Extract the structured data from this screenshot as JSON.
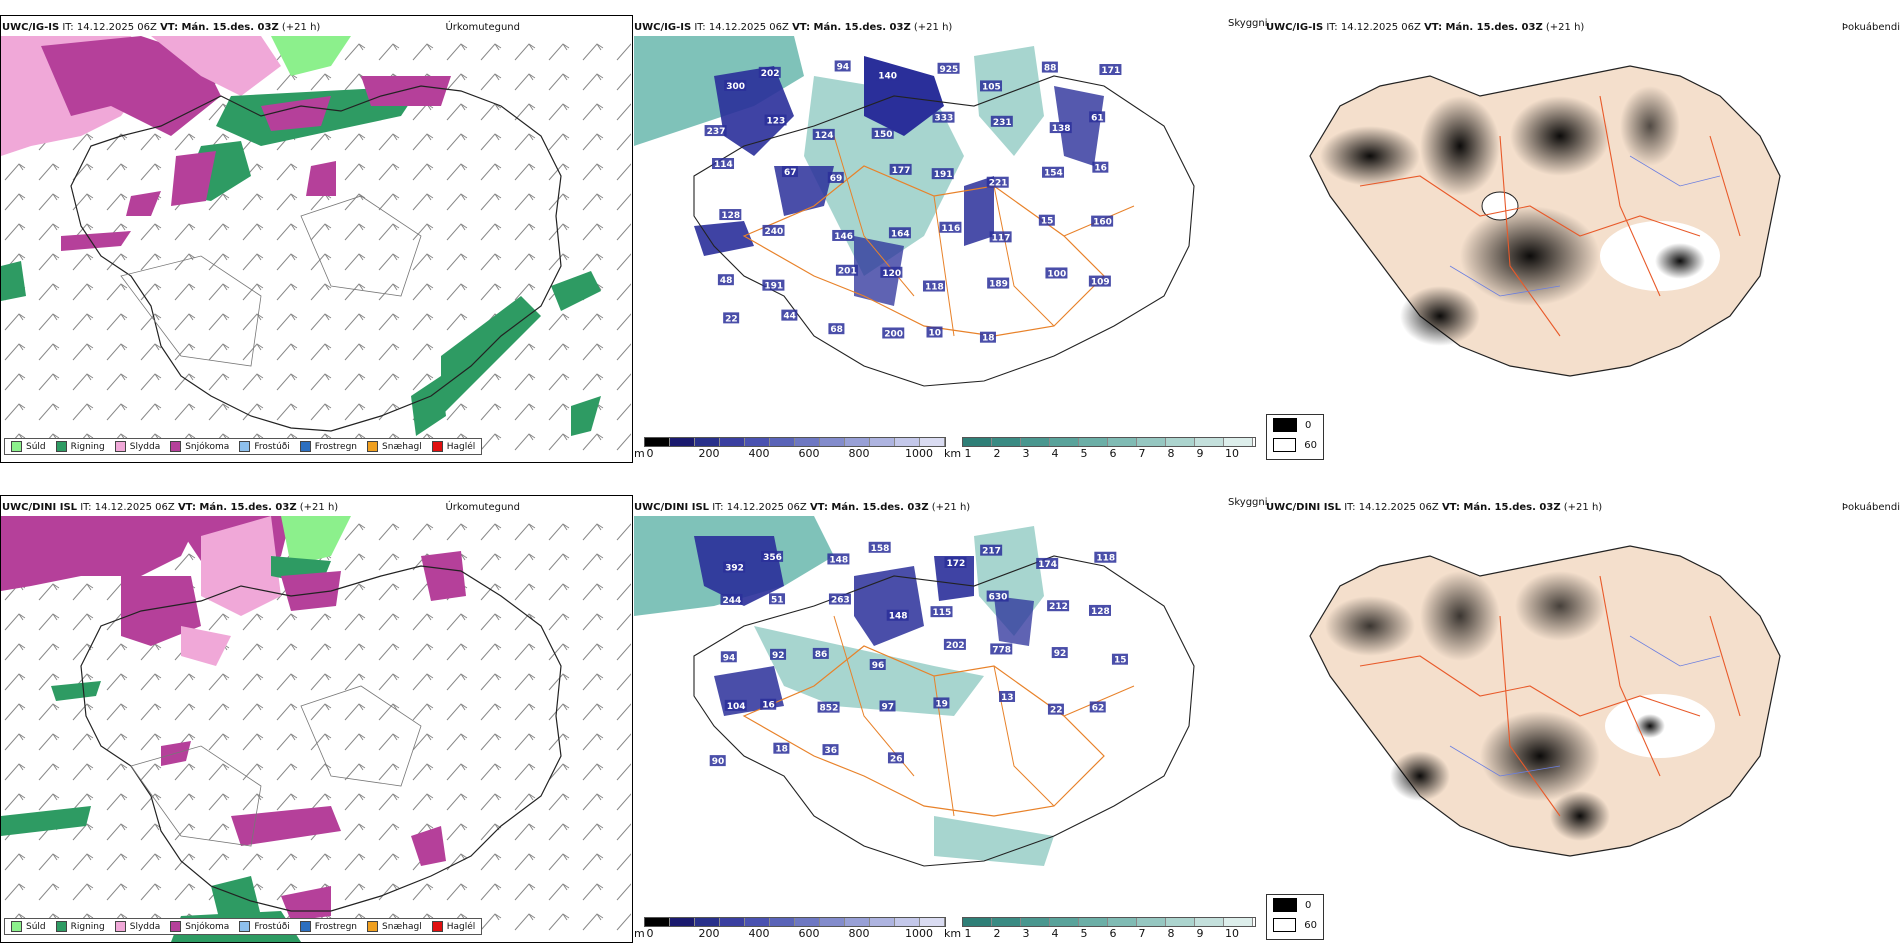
{
  "colors": {
    "sud": "#8cf08c",
    "rigning": "#2e9b63",
    "slydda": "#f0a8d8",
    "snjokoma": "#b5409a",
    "frostudi": "#8ec0ec",
    "frostregn": "#2c6fc0",
    "snaehagl": "#f0a020",
    "haglel": "#e01010",
    "cloud_teal": "#5fb3a8",
    "cloud_blue": "#2a2f9a",
    "road_orange": "#e8822a",
    "land_tan": "#f4dfcc"
  },
  "legend_precip": [
    "Súld",
    "Rigning",
    "Slydda",
    "Snjókoma",
    "Frostúði",
    "Frostregn",
    "Snæhagl",
    "Haglél"
  ],
  "row_top": {
    "model": "UWC/IG-IS",
    "it_label": "IT: 14.12.2025 06Z",
    "vt_label": "VT: Mán. 15.des. 03Z",
    "lead": "(+21 h)",
    "right_title_precip": "Úrkomutegund",
    "skyggni_label": "Skyggni",
    "right_title_fog": "Þokuábendi",
    "visibility_labels": [
      "300",
      "202",
      "94",
      "140",
      "925",
      "105",
      "88",
      "171",
      "237",
      "123",
      "124",
      "150",
      "333",
      "231",
      "138",
      "61",
      "114",
      "67",
      "69",
      "177",
      "191",
      "221",
      "154",
      "16",
      "128",
      "240",
      "146",
      "164",
      "116",
      "117",
      "15",
      "160",
      "48",
      "191",
      "201",
      "120",
      "118",
      "189",
      "100",
      "109",
      "22",
      "44",
      "68",
      "200",
      "10",
      "18"
    ]
  },
  "row_bottom": {
    "model": "UWC/DINI ISL",
    "it_label": "IT: 14.12.2025 06Z",
    "vt_label": "VT: Mán. 15.des. 03Z",
    "lead": "(+21 h)",
    "right_title_precip": "Úrkomutegund",
    "skyggni_label": "Skyggni",
    "right_title_fog": "Þokuábendi",
    "visibility_labels": [
      "392",
      "356",
      "148",
      "158",
      "172",
      "217",
      "174",
      "118",
      "244",
      "51",
      "263",
      "148",
      "115",
      "630",
      "212",
      "128",
      "94",
      "92",
      "86",
      "96",
      "202",
      "778",
      "92",
      "15",
      "104",
      "16",
      "852",
      "97",
      "19",
      "13",
      "22",
      "62",
      "90",
      "18",
      "36",
      "26"
    ]
  },
  "colorbar_height": {
    "unit": "m",
    "ticks": [
      "0",
      "200",
      "400",
      "600",
      "800",
      "1000"
    ]
  },
  "colorbar_cloudbase": {
    "unit": "km",
    "ticks": [
      "1",
      "2",
      "3",
      "4",
      "5",
      "6",
      "7",
      "8",
      "9",
      "10"
    ]
  },
  "fog_legend": {
    "values": [
      "0",
      "60"
    ]
  }
}
